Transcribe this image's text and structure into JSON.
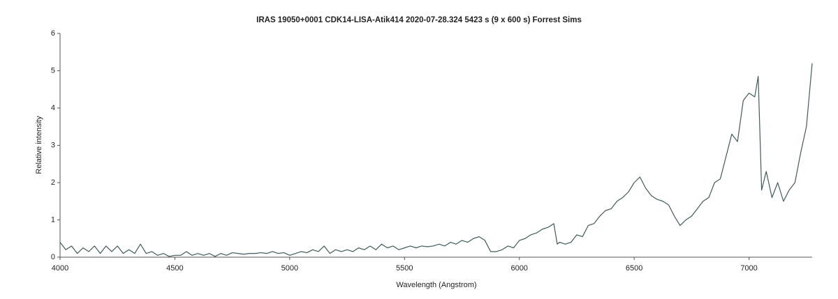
{
  "chart_data": {
    "type": "line",
    "title": "IRAS 19050+0001  CDK14-LISA-Atik414  2020-07-28.324  5423 s (9 x 600 s)  Forrest Sims",
    "x_label": "Wavelength (Angstrom)",
    "y_label": "Relative intensity",
    "xlim": [
      4000,
      7275
    ],
    "ylim": [
      0,
      6
    ],
    "xticks": [
      4000,
      4500,
      5000,
      5500,
      6000,
      6500,
      7000
    ],
    "yticks": [
      0,
      1,
      2,
      3,
      4,
      5,
      6
    ],
    "grid": false,
    "series": [
      {
        "color": "#3f5c5a",
        "x": [
          4000,
          4025,
          4050,
          4075,
          4100,
          4125,
          4150,
          4175,
          4200,
          4225,
          4250,
          4275,
          4300,
          4325,
          4350,
          4375,
          4400,
          4425,
          4450,
          4475,
          4500,
          4525,
          4550,
          4575,
          4600,
          4625,
          4650,
          4675,
          4700,
          4725,
          4750,
          4775,
          4800,
          4825,
          4850,
          4875,
          4900,
          4925,
          4950,
          4975,
          5000,
          5025,
          5050,
          5075,
          5100,
          5125,
          5150,
          5175,
          5200,
          5225,
          5250,
          5275,
          5300,
          5325,
          5350,
          5375,
          5400,
          5425,
          5450,
          5475,
          5500,
          5525,
          5550,
          5575,
          5600,
          5625,
          5650,
          5675,
          5700,
          5725,
          5750,
          5775,
          5800,
          5825,
          5850,
          5875,
          5900,
          5925,
          5950,
          5975,
          6000,
          6025,
          6050,
          6075,
          6100,
          6125,
          6150,
          6165,
          6175,
          6200,
          6225,
          6250,
          6275,
          6300,
          6325,
          6350,
          6375,
          6400,
          6425,
          6450,
          6475,
          6500,
          6525,
          6550,
          6575,
          6600,
          6625,
          6650,
          6675,
          6700,
          6725,
          6750,
          6775,
          6800,
          6825,
          6850,
          6875,
          6900,
          6925,
          6950,
          6975,
          7000,
          7025,
          7040,
          7055,
          7075,
          7100,
          7125,
          7150,
          7175,
          7200,
          7225,
          7250,
          7275
        ],
        "values": [
          0.4,
          0.2,
          0.3,
          0.1,
          0.25,
          0.15,
          0.3,
          0.1,
          0.3,
          0.15,
          0.3,
          0.1,
          0.2,
          0.1,
          0.35,
          0.1,
          0.15,
          0.05,
          0.1,
          0.02,
          0.05,
          0.05,
          0.15,
          0.05,
          0.1,
          0.05,
          0.1,
          0.02,
          0.1,
          0.05,
          0.12,
          0.1,
          0.08,
          0.1,
          0.1,
          0.12,
          0.1,
          0.15,
          0.1,
          0.12,
          0.05,
          0.1,
          0.15,
          0.12,
          0.2,
          0.15,
          0.3,
          0.1,
          0.2,
          0.15,
          0.2,
          0.15,
          0.25,
          0.2,
          0.3,
          0.2,
          0.35,
          0.25,
          0.3,
          0.2,
          0.25,
          0.3,
          0.25,
          0.3,
          0.28,
          0.3,
          0.35,
          0.3,
          0.4,
          0.35,
          0.45,
          0.4,
          0.5,
          0.55,
          0.45,
          0.15,
          0.15,
          0.2,
          0.3,
          0.25,
          0.45,
          0.5,
          0.6,
          0.65,
          0.75,
          0.8,
          0.9,
          0.35,
          0.4,
          0.35,
          0.4,
          0.6,
          0.55,
          0.85,
          0.9,
          1.1,
          1.25,
          1.3,
          1.5,
          1.6,
          1.75,
          2.0,
          2.15,
          1.85,
          1.65,
          1.55,
          1.5,
          1.4,
          1.1,
          0.85,
          1.0,
          1.1,
          1.3,
          1.5,
          1.6,
          2.0,
          2.1,
          2.7,
          3.3,
          3.1,
          4.2,
          4.4,
          4.3,
          4.85,
          1.8,
          2.3,
          1.6,
          2.0,
          1.5,
          1.8,
          2.0,
          2.8,
          3.5,
          5.2
        ]
      }
    ]
  }
}
